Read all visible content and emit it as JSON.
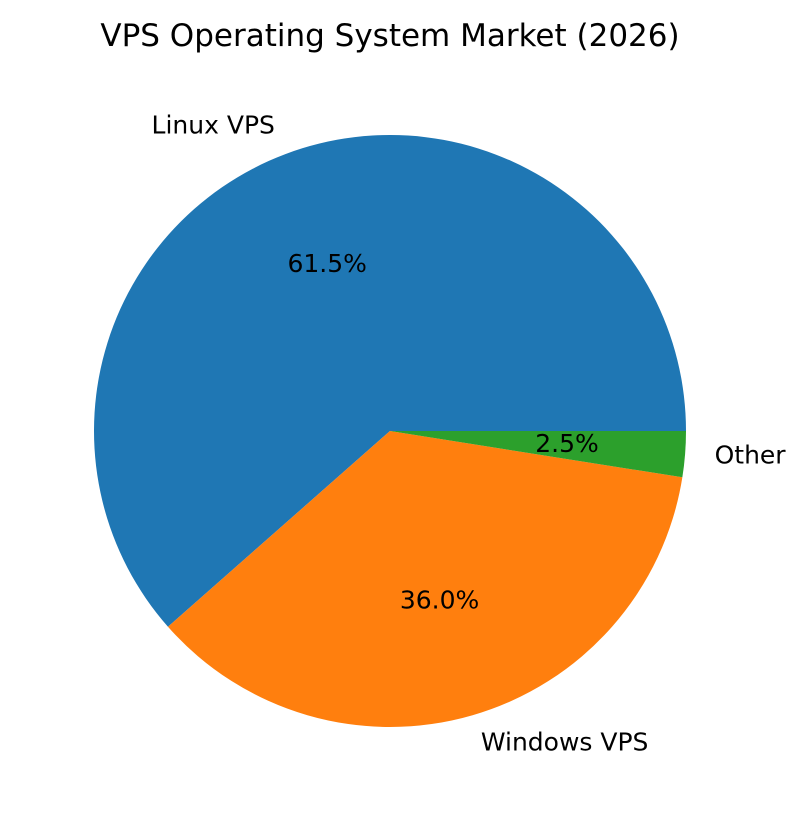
{
  "chart_data": {
    "type": "pie",
    "title": "VPS Operating System Market (2026)",
    "slices": [
      {
        "label": "Linux VPS",
        "value": 61.5,
        "percent_label": "61.5%",
        "color": "#1f77b4"
      },
      {
        "label": "Windows VPS",
        "value": 36.0,
        "percent_label": "36.0%",
        "color": "#ff7f0e"
      },
      {
        "label": "Other",
        "value": 2.5,
        "percent_label": "2.5%",
        "color": "#2ca02c"
      }
    ],
    "legend": "none",
    "start_angle": 0,
    "direction": "counterclockwise"
  }
}
